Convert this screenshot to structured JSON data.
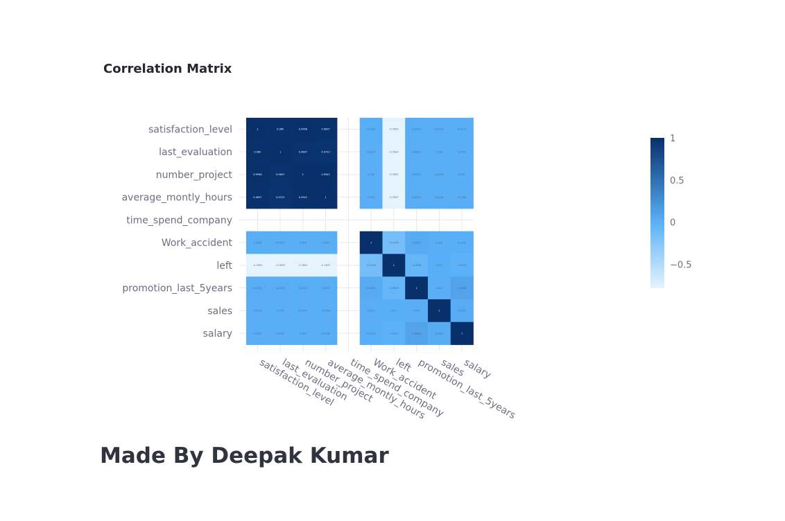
{
  "page": {
    "chart_title": "Correlation Matrix",
    "footer_title": "Made By Deepak Kumar"
  },
  "chart_data": {
    "type": "heatmap",
    "title": "Correlation Matrix",
    "labels": [
      "satisfaction_level",
      "last_evaluation",
      "number_project",
      "average_montly_hours",
      "time_spend_company",
      "Work_accident",
      "left",
      "promotion_last_5years",
      "sales",
      "salary"
    ],
    "matrix": [
      [
        1,
        0.985,
        0.9958,
        0.9837,
        null,
        0.0183,
        -0.7855,
        0.0253,
        0.0132,
        0.0173
      ],
      [
        0.985,
        1,
        0.9807,
        0.9723,
        null,
        0.0125,
        -0.7839,
        0.0259,
        0.014,
        0.0167
      ],
      [
        0.9958,
        0.9807,
        1,
        0.9942,
        null,
        0.016,
        -0.7852,
        0.0257,
        0.0135,
        0.017
      ],
      [
        0.9837,
        0.9723,
        0.9942,
        1,
        null,
        0.015,
        -0.7837,
        0.0255,
        0.0138,
        0.0168
      ],
      [
        null,
        null,
        null,
        null,
        null,
        null,
        null,
        null,
        null,
        null
      ],
      [
        0.0183,
        0.0125,
        0.016,
        0.015,
        null,
        1,
        -0.1546,
        0.0393,
        0.012,
        0.0103
      ],
      [
        -0.7855,
        -0.7839,
        -0.7852,
        -0.7837,
        null,
        -0.1546,
        1,
        -0.0618,
        0.01,
        -0.0157
      ],
      [
        0.0253,
        0.0259,
        0.0257,
        0.0255,
        null,
        0.0393,
        -0.0618,
        1,
        0.012,
        0.0988
      ],
      [
        0.0132,
        0.014,
        0.0135,
        0.0138,
        null,
        0.012,
        0.01,
        0.012,
        1,
        0.0337
      ],
      [
        0.0173,
        0.0167,
        0.017,
        0.0168,
        null,
        0.0103,
        -0.0157,
        0.0988,
        0.0337,
        1
      ]
    ],
    "colorscale": "Blues",
    "zmin": -0.7855,
    "zmax": 1,
    "colorbar_ticks": [
      "1",
      "0.5",
      "0",
      "−0.5"
    ],
    "colorbar_tick_values": [
      1,
      0.5,
      0,
      -0.5
    ],
    "colors": {
      "low": "#e5f3ff",
      "mid": "#5ab0f8",
      "high": "#08306b",
      "grid": "#e6e6e6"
    }
  }
}
